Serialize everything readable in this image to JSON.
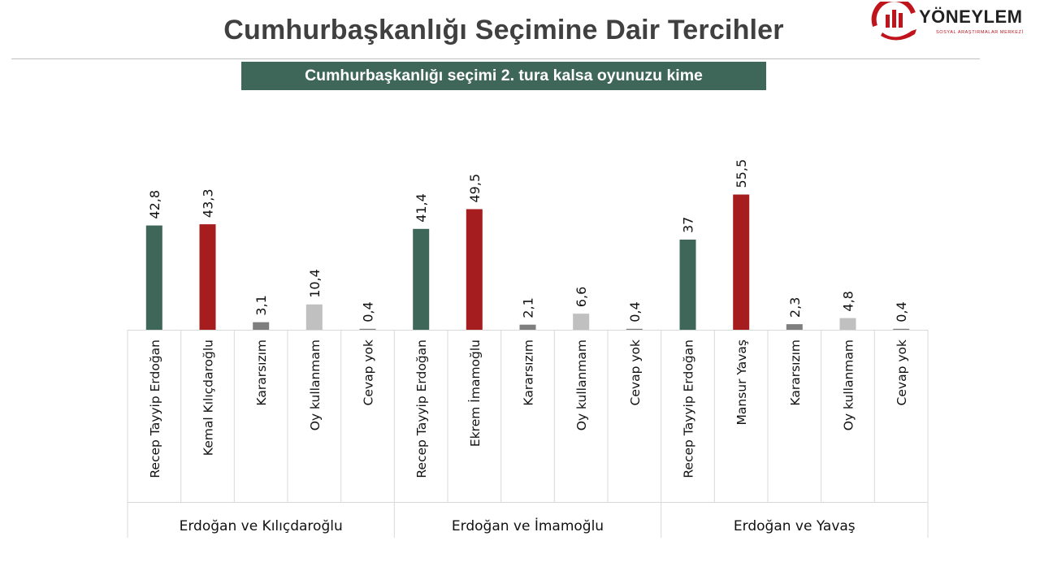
{
  "title": "Cumhurbaşkanlığı Seçimine Dair Tercihler",
  "subtitle": "Cumhurbaşkanlığı seçimi 2. tura kalsa oyunuzu kime",
  "logo": {
    "name": "YÖNEYLEM",
    "tagline": "SOSYAL ARAŞTIRMALAR MERKEZİ"
  },
  "colors": {
    "green": "#3e6659",
    "red": "#a51d1f",
    "dark_gray": "#7f7f7f",
    "light_gray": "#c0c0c0"
  },
  "chart_data": {
    "type": "bar",
    "ylim": [
      0,
      60
    ],
    "grid": false,
    "legend": "none",
    "groups": [
      {
        "name": "Erdoğan ve Kılıçdaroğlu",
        "categories": [
          "Recep Tayyip Erdoğan",
          "Kemal Kılıçdaroğlu",
          "Kararsızım",
          "Oy kullanmam",
          "Cevap yok"
        ],
        "values": [
          42.8,
          43.3,
          3.1,
          10.4,
          0.4
        ],
        "labels": [
          "42,8",
          "43,3",
          "3,1",
          "10,4",
          "0,4"
        ],
        "colors": [
          "green",
          "red",
          "dark_gray",
          "light_gray",
          "dark_gray"
        ]
      },
      {
        "name": "Erdoğan ve İmamoğlu",
        "categories": [
          "Recep Tayyip Erdoğan",
          "Ekrem İmamoğlu",
          "Kararsızım",
          "Oy kullanmam",
          "Cevap yok"
        ],
        "values": [
          41.4,
          49.5,
          2.1,
          6.6,
          0.4
        ],
        "labels": [
          "41,4",
          "49,5",
          "2,1",
          "6,6",
          "0,4"
        ],
        "colors": [
          "green",
          "red",
          "dark_gray",
          "light_gray",
          "dark_gray"
        ]
      },
      {
        "name": "Erdoğan ve Yavaş",
        "categories": [
          "Recep Tayyip Erdoğan",
          "Mansur Yavaş",
          "Kararsızım",
          "Oy kullanmam",
          "Cevap yok"
        ],
        "values": [
          37,
          55.5,
          2.3,
          4.8,
          0.4
        ],
        "labels": [
          "37",
          "55,5",
          "2,3",
          "4,8",
          "0,4"
        ],
        "colors": [
          "green",
          "red",
          "dark_gray",
          "light_gray",
          "dark_gray"
        ]
      }
    ]
  }
}
